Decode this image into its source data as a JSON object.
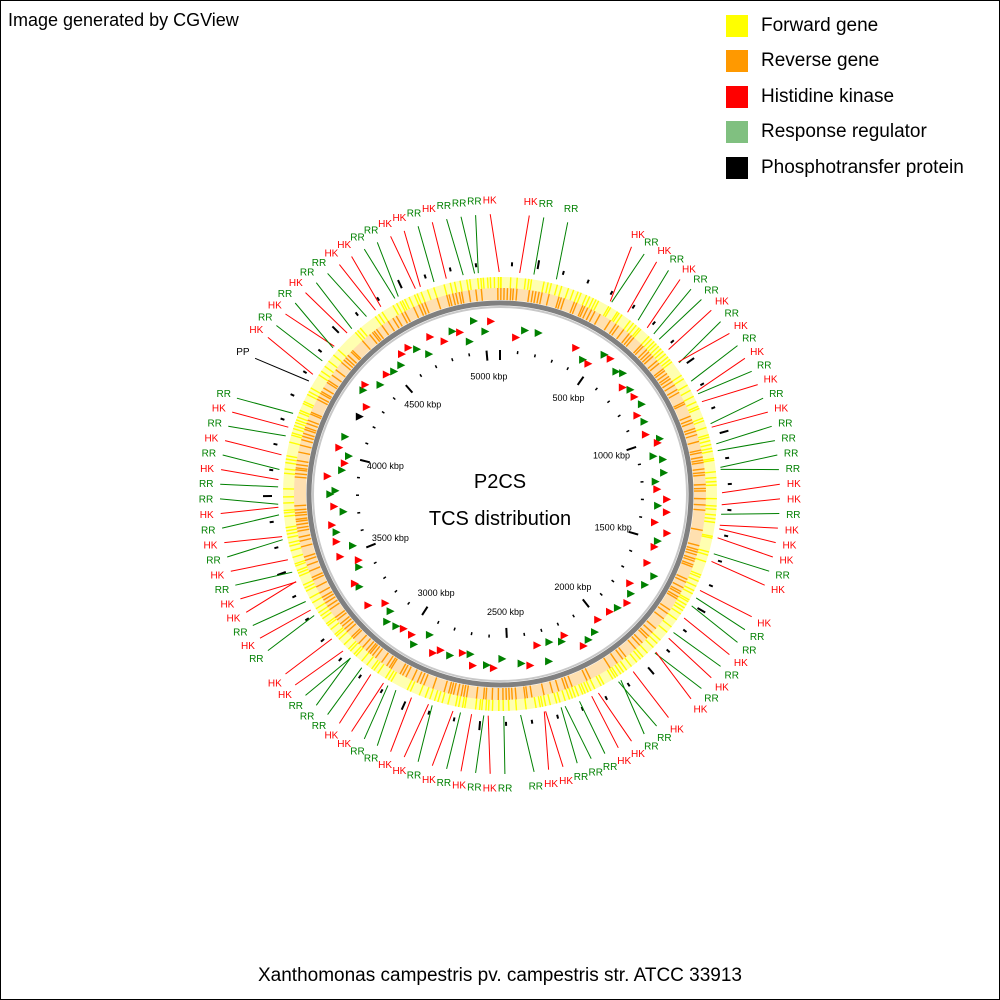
{
  "credit": "Image generated by CGView",
  "legend": [
    {
      "label": "Forward gene",
      "color": "#ffff00"
    },
    {
      "label": "Reverse gene",
      "color": "#ff9900"
    },
    {
      "label": "Histidine kinase",
      "color": "#ff0000"
    },
    {
      "label": "Response regulator",
      "color": "#80c080"
    },
    {
      "label": "Phosphotransfer protein",
      "color": "#000000"
    }
  ],
  "center": {
    "line1": "P2CS",
    "line2": "TCS distribution"
  },
  "caption": "Xanthomonas campestris pv. campestris str. ATCC 33913",
  "genome": {
    "length_kbp": 5076,
    "ticks_kbp": [
      "500 kbp",
      "1000 kbp",
      "1500 kbp",
      "2000 kbp",
      "2500 kbp",
      "3000 kbp",
      "3500 kbp",
      "4000 kbp",
      "4500 kbp",
      "5000 kbp"
    ]
  },
  "colors": {
    "hk": "#ff0000",
    "rr": "#008000",
    "pp": "#000000",
    "forward": "#ffff00",
    "reverse": "#ff9900"
  },
  "feature_labels": [
    {
      "t": "HK",
      "a": 6
    },
    {
      "t": "RR",
      "a": 9
    },
    {
      "t": "RR",
      "a": 14
    },
    {
      "t": "HK",
      "a": 28
    },
    {
      "t": "RR",
      "a": 31
    },
    {
      "t": "HK",
      "a": 34
    },
    {
      "t": "RR",
      "a": 37
    },
    {
      "t": "HK",
      "a": 40
    },
    {
      "t": "RR",
      "a": 43
    },
    {
      "t": "RR",
      "a": 46
    },
    {
      "t": "HK",
      "a": 49
    },
    {
      "t": "RR",
      "a": 52
    },
    {
      "t": "HK",
      "a": 55
    },
    {
      "t": "RR",
      "a": 58
    },
    {
      "t": "HK",
      "a": 61
    },
    {
      "t": "RR",
      "a": 64
    },
    {
      "t": "HK",
      "a": 67
    },
    {
      "t": "RR",
      "a": 70
    },
    {
      "t": "HK",
      "a": 73
    },
    {
      "t": "RR",
      "a": 76
    },
    {
      "t": "RR",
      "a": 79
    },
    {
      "t": "RR",
      "a": 82
    },
    {
      "t": "RR",
      "a": 85
    },
    {
      "t": "HK",
      "a": 88
    },
    {
      "t": "HK",
      "a": 91
    },
    {
      "t": "RR",
      "a": 94
    },
    {
      "t": "HK",
      "a": 97
    },
    {
      "t": "HK",
      "a": 100
    },
    {
      "t": "HK",
      "a": 103
    },
    {
      "t": "RR",
      "a": 106
    },
    {
      "t": "HK",
      "a": 109
    },
    {
      "t": "HK",
      "a": 116
    },
    {
      "t": "RR",
      "a": 119
    },
    {
      "t": "RR",
      "a": 122
    },
    {
      "t": "HK",
      "a": 125
    },
    {
      "t": "RR",
      "a": 128
    },
    {
      "t": "HK",
      "a": 131
    },
    {
      "t": "RR",
      "a": 134
    },
    {
      "t": "HK",
      "a": 137
    },
    {
      "t": "HK",
      "a": 143
    },
    {
      "t": "RR",
      "a": 146
    },
    {
      "t": "RR",
      "a": 149
    },
    {
      "t": "HK",
      "a": 152
    },
    {
      "t": "HK",
      "a": 155
    },
    {
      "t": "RR",
      "a": 158
    },
    {
      "t": "RR",
      "a": 161
    },
    {
      "t": "RR",
      "a": 164
    },
    {
      "t": "HK",
      "a": 167
    },
    {
      "t": "HK",
      "a": 170
    },
    {
      "t": "RR",
      "a": 173
    },
    {
      "t": "RR",
      "a": 179
    },
    {
      "t": "HK",
      "a": 182
    },
    {
      "t": "RR",
      "a": 185
    },
    {
      "t": "HK",
      "a": 188
    },
    {
      "t": "RR",
      "a": 191
    },
    {
      "t": "HK",
      "a": 194
    },
    {
      "t": "RR",
      "a": 197
    },
    {
      "t": "HK",
      "a": 200
    },
    {
      "t": "HK",
      "a": 203
    },
    {
      "t": "RR",
      "a": 206
    },
    {
      "t": "RR",
      "a": 209
    },
    {
      "t": "HK",
      "a": 212
    },
    {
      "t": "HK",
      "a": 215
    },
    {
      "t": "RR",
      "a": 218
    },
    {
      "t": "RR",
      "a": 221
    },
    {
      "t": "RR",
      "a": 224
    },
    {
      "t": "HK",
      "a": 227
    },
    {
      "t": "HK",
      "a": 230
    },
    {
      "t": "RR",
      "a": 236
    },
    {
      "t": "HK",
      "a": 239
    },
    {
      "t": "RR",
      "a": 242
    },
    {
      "t": "HK",
      "a": 245
    },
    {
      "t": "HK",
      "a": 248
    },
    {
      "t": "RR",
      "a": 251
    },
    {
      "t": "HK",
      "a": 254
    },
    {
      "t": "RR",
      "a": 257
    },
    {
      "t": "HK",
      "a": 260
    },
    {
      "t": "RR",
      "a": 263
    },
    {
      "t": "HK",
      "a": 266
    },
    {
      "t": "RR",
      "a": 269
    },
    {
      "t": "RR",
      "a": 272
    },
    {
      "t": "HK",
      "a": 275
    },
    {
      "t": "RR",
      "a": 278
    },
    {
      "t": "HK",
      "a": 281
    },
    {
      "t": "RR",
      "a": 284
    },
    {
      "t": "HK",
      "a": 287
    },
    {
      "t": "RR",
      "a": 290
    },
    {
      "t": "PP",
      "a": 299
    },
    {
      "t": "HK",
      "a": 304
    },
    {
      "t": "RR",
      "a": 307
    },
    {
      "t": "HK",
      "a": 310
    },
    {
      "t": "RR",
      "a": 313
    },
    {
      "t": "HK",
      "a": 316
    },
    {
      "t": "RR",
      "a": 319
    },
    {
      "t": "RR",
      "a": 322
    },
    {
      "t": "HK",
      "a": 325
    },
    {
      "t": "HK",
      "a": 328
    },
    {
      "t": "RR",
      "a": 331
    },
    {
      "t": "RR",
      "a": 334
    },
    {
      "t": "HK",
      "a": 337
    },
    {
      "t": "HK",
      "a": 340
    },
    {
      "t": "RR",
      "a": 343
    },
    {
      "t": "HK",
      "a": 346
    },
    {
      "t": "RR",
      "a": 349
    },
    {
      "t": "RR",
      "a": 352
    },
    {
      "t": "RR",
      "a": 355
    },
    {
      "t": "HK",
      "a": 358
    }
  ]
}
